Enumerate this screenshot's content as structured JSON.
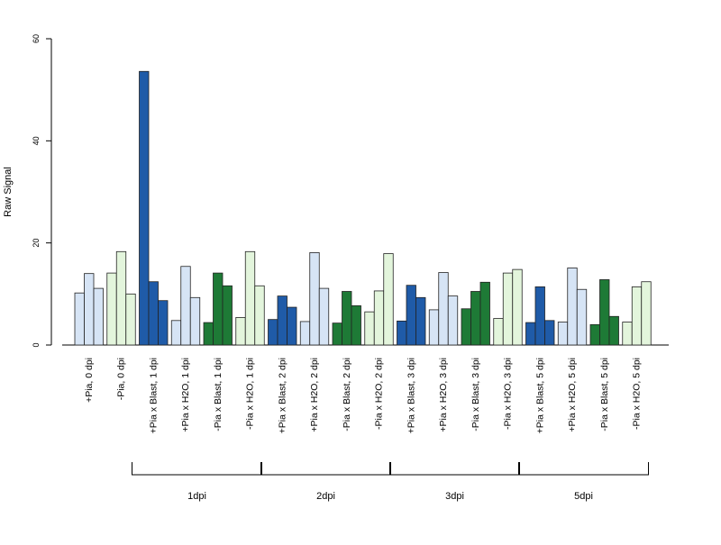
{
  "chart_data": {
    "type": "bar",
    "title": "",
    "xlabel": "",
    "ylabel": "Raw Signal",
    "ylim": [
      0,
      60
    ],
    "yticks": [
      0,
      20,
      40,
      60
    ],
    "grid": false,
    "groups": [
      {
        "label": "+Pia, 0 dpi",
        "values": [
          10.2,
          14.0,
          11.1
        ],
        "color": "#d6e4f5"
      },
      {
        "label": "-Pia, 0 dpi",
        "values": [
          14.1,
          18.3,
          10.0
        ],
        "color": "#e3f5dc"
      },
      {
        "label": "+Pia x Blast, 1 dpi",
        "values": [
          53.6,
          12.4,
          8.7
        ],
        "color": "#1f5ba8"
      },
      {
        "label": "+Pia x H2O, 1 dpi",
        "values": [
          4.8,
          15.4,
          9.3
        ],
        "color": "#d6e4f5"
      },
      {
        "label": "-Pia x Blast, 1 dpi",
        "values": [
          4.4,
          14.1,
          11.6
        ],
        "color": "#1e7a36"
      },
      {
        "label": "-Pia x H2O, 1 dpi",
        "values": [
          5.4,
          18.3,
          11.6
        ],
        "color": "#e3f5dc"
      },
      {
        "label": "+Pia x Blast, 2 dpi",
        "values": [
          5.0,
          9.6,
          7.4
        ],
        "color": "#1f5ba8"
      },
      {
        "label": "+Pia x H2O, 2 dpi",
        "values": [
          4.6,
          18.1,
          11.1
        ],
        "color": "#d6e4f5"
      },
      {
        "label": "-Pia x Blast, 2 dpi",
        "values": [
          4.3,
          10.5,
          7.7
        ],
        "color": "#1e7a36"
      },
      {
        "label": "-Pia x H2O, 2 dpi",
        "values": [
          6.5,
          10.6,
          17.9
        ],
        "color": "#e3f5dc"
      },
      {
        "label": "+Pia x Blast, 3 dpi",
        "values": [
          4.7,
          11.7,
          9.3
        ],
        "color": "#1f5ba8"
      },
      {
        "label": "+Pia x H2O, 3 dpi",
        "values": [
          6.9,
          14.2,
          9.6
        ],
        "color": "#d6e4f5"
      },
      {
        "label": "-Pia x Blast, 3 dpi",
        "values": [
          7.1,
          10.5,
          12.3
        ],
        "color": "#1e7a36"
      },
      {
        "label": "-Pia x H2O, 3 dpi",
        "values": [
          5.2,
          14.1,
          14.8
        ],
        "color": "#e3f5dc"
      },
      {
        "label": "+Pia x Blast, 5 dpi",
        "values": [
          4.4,
          11.4,
          4.8
        ],
        "color": "#1f5ba8"
      },
      {
        "label": "+Pia x H2O, 5 dpi",
        "values": [
          4.5,
          15.1,
          10.9
        ],
        "color": "#d6e4f5"
      },
      {
        "label": "-Pia x Blast, 5 dpi",
        "values": [
          4.0,
          12.8,
          5.6
        ],
        "color": "#1e7a36"
      },
      {
        "label": "-Pia x H2O, 5 dpi",
        "values": [
          4.5,
          11.4,
          12.4
        ],
        "color": "#e3f5dc"
      }
    ],
    "brackets": [
      {
        "label": "1dpi",
        "from_group": 2,
        "to_group": 5
      },
      {
        "label": "2dpi",
        "from_group": 6,
        "to_group": 9
      },
      {
        "label": "3dpi",
        "from_group": 10,
        "to_group": 13
      },
      {
        "label": "5dpi",
        "from_group": 14,
        "to_group": 17
      }
    ]
  }
}
